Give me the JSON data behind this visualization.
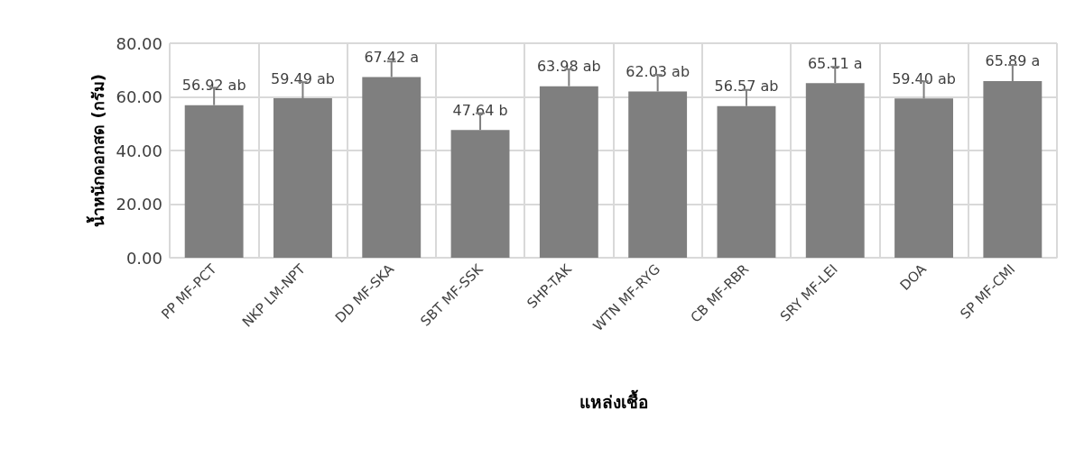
{
  "chart_data": {
    "type": "bar",
    "xlabel": "แหล่งเชื้อ",
    "ylabel": "น้ำหนักดอกสด (กรัม)",
    "categories": [
      "PP MF-PCT",
      "NKP LM-NPT",
      "DD MF-SKA",
      "SBT MF-SSK",
      "SHP-TAK",
      "WTN MF-RYG",
      "CB MF-RBR",
      "SRY MF-LEI",
      "DOA",
      "SP MF-CMI"
    ],
    "values": [
      56.92,
      59.49,
      67.42,
      47.64,
      63.98,
      62.03,
      56.57,
      65.11,
      59.4,
      65.89
    ],
    "value_labels": [
      "56.92 ab",
      "59.49 ab",
      "67.42 a",
      "47.64 b",
      "63.98 ab",
      "62.03 ab",
      "56.57 ab",
      "65.11 a",
      "59.40 ab",
      "65.89 a"
    ],
    "errors": [
      [
        56.92,
        63.4
      ],
      [
        59.49,
        65.5
      ],
      [
        67.42,
        73.2
      ],
      [
        47.64,
        53.9
      ],
      [
        63.98,
        70.3
      ],
      [
        62.03,
        68.2
      ],
      [
        56.57,
        62.6
      ],
      [
        65.11,
        71.2
      ],
      [
        59.4,
        65.8
      ],
      [
        65.89,
        71.9
      ]
    ],
    "color": "#7f7f7f",
    "ylim": [
      0,
      80
    ],
    "yticks": [
      {
        "value": 0,
        "label": "0.00"
      },
      {
        "value": 20,
        "label": "20.00"
      },
      {
        "value": 40,
        "label": "40.00"
      },
      {
        "value": 60,
        "label": "60.00"
      },
      {
        "value": 80,
        "label": "80.00"
      }
    ],
    "grid": true
  }
}
